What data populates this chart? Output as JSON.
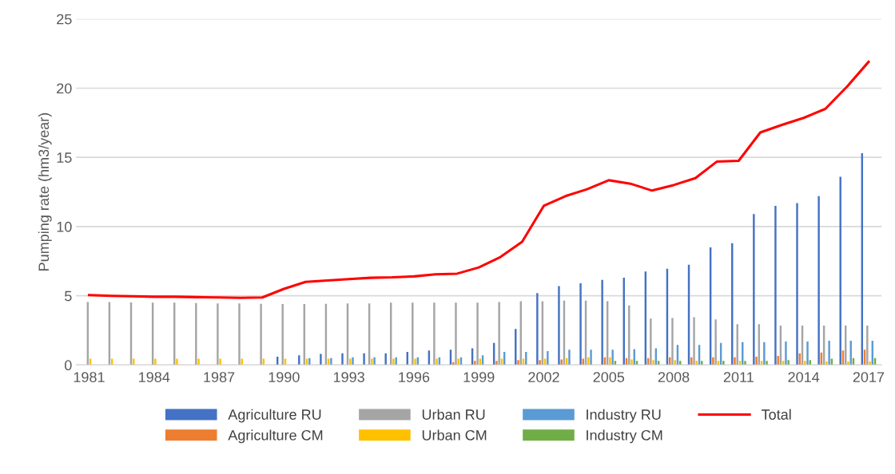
{
  "chart_data": {
    "type": "bar",
    "ylabel": "Pumping rate (hm3/year)",
    "categories": [
      "1981",
      null,
      null,
      "1984",
      null,
      null,
      "1987",
      null,
      null,
      "1990",
      null,
      null,
      "1993",
      null,
      null,
      "1996",
      null,
      null,
      "1999",
      null,
      null,
      "2002",
      null,
      null,
      "2005",
      null,
      null,
      "2008",
      null,
      null,
      "2011",
      null,
      null,
      "2014",
      null,
      null,
      "2017"
    ],
    "ylim": [
      0,
      25
    ],
    "yticks": [
      0,
      5,
      10,
      15,
      20,
      25
    ],
    "grid": "y",
    "legend": "bottom",
    "series": [
      {
        "name": "Agriculture RU",
        "color": "#4472c4",
        "values": [
          0,
          0,
          0,
          0,
          0,
          0,
          0,
          0,
          0,
          0.6,
          0.7,
          0.8,
          0.85,
          0.85,
          0.85,
          0.95,
          1.05,
          1.1,
          1.2,
          1.6,
          2.6,
          5.2,
          5.7,
          5.9,
          6.15,
          6.3,
          6.75,
          6.95,
          7.25,
          8.5,
          8.8,
          10.9,
          11.5,
          11.7,
          12.2,
          13.6,
          15.3
        ]
      },
      {
        "name": "Agriculture CM",
        "color": "#ed7d31",
        "values": [
          0,
          0,
          0,
          0,
          0,
          0,
          0,
          0,
          0,
          0,
          0,
          0,
          0,
          0,
          0,
          0,
          0,
          0.2,
          0.3,
          0.3,
          0.35,
          0.35,
          0.4,
          0.45,
          0.55,
          0.5,
          0.5,
          0.55,
          0.55,
          0.55,
          0.55,
          0.6,
          0.65,
          0.85,
          0.9,
          1.05,
          1.1
        ]
      },
      {
        "name": "Urban RU",
        "color": "#a5a5a5",
        "values": [
          4.55,
          4.55,
          4.52,
          4.5,
          4.5,
          4.48,
          4.45,
          4.45,
          4.42,
          4.4,
          4.4,
          4.42,
          4.45,
          4.45,
          4.5,
          4.5,
          4.5,
          4.5,
          4.5,
          4.55,
          4.6,
          4.6,
          4.65,
          4.65,
          4.6,
          4.3,
          3.35,
          3.4,
          3.45,
          3.3,
          2.95,
          2.95,
          2.85,
          2.85,
          2.85,
          2.85,
          2.85
        ]
      },
      {
        "name": "Urban CM",
        "color": "#ffc000",
        "values": [
          0.45,
          0.45,
          0.45,
          0.45,
          0.45,
          0.45,
          0.45,
          0.45,
          0.45,
          0.45,
          0.45,
          0.45,
          0.45,
          0.45,
          0.45,
          0.45,
          0.45,
          0.45,
          0.45,
          0.45,
          0.45,
          0.45,
          0.5,
          0.55,
          0.55,
          0.4,
          0.35,
          0.35,
          0.3,
          0.3,
          0.3,
          0.3,
          0.3,
          0.3,
          0.25,
          0.25,
          0.25
        ]
      },
      {
        "name": "Industry RU",
        "color": "#5b9bd5",
        "values": [
          0,
          0,
          0,
          0,
          0,
          0,
          0,
          0,
          0,
          null,
          0.5,
          0.5,
          0.55,
          0.55,
          0.55,
          0.55,
          0.55,
          0.55,
          0.7,
          0.95,
          0.95,
          1.0,
          1.1,
          1.1,
          1.1,
          1.15,
          1.2,
          1.45,
          1.45,
          1.6,
          1.65,
          1.65,
          1.7,
          1.7,
          1.75,
          1.75,
          1.75
        ]
      },
      {
        "name": "Industry CM",
        "color": "#70ad47",
        "values": [
          0,
          0,
          0,
          0,
          0,
          0,
          0,
          0,
          0,
          0,
          0,
          0,
          0,
          0,
          0,
          0,
          0,
          0,
          0,
          0,
          0,
          0,
          0,
          null,
          0.3,
          0.3,
          0.3,
          0.3,
          0.3,
          0.3,
          0.3,
          0.3,
          0.35,
          0.35,
          0.45,
          0.5,
          0.5
        ]
      },
      {
        "name": "Total",
        "type": "line",
        "color": "#ff0000",
        "values": [
          5.05,
          5.0,
          4.97,
          4.93,
          4.93,
          4.9,
          4.88,
          4.85,
          4.88,
          5.5,
          6.0,
          6.1,
          6.2,
          6.3,
          6.33,
          6.4,
          6.55,
          6.6,
          7.05,
          7.8,
          8.9,
          11.5,
          12.2,
          12.7,
          13.35,
          13.1,
          12.6,
          13.0,
          13.5,
          14.7,
          14.75,
          16.8,
          17.35,
          17.85,
          18.5,
          20.1,
          21.9
        ]
      }
    ]
  }
}
